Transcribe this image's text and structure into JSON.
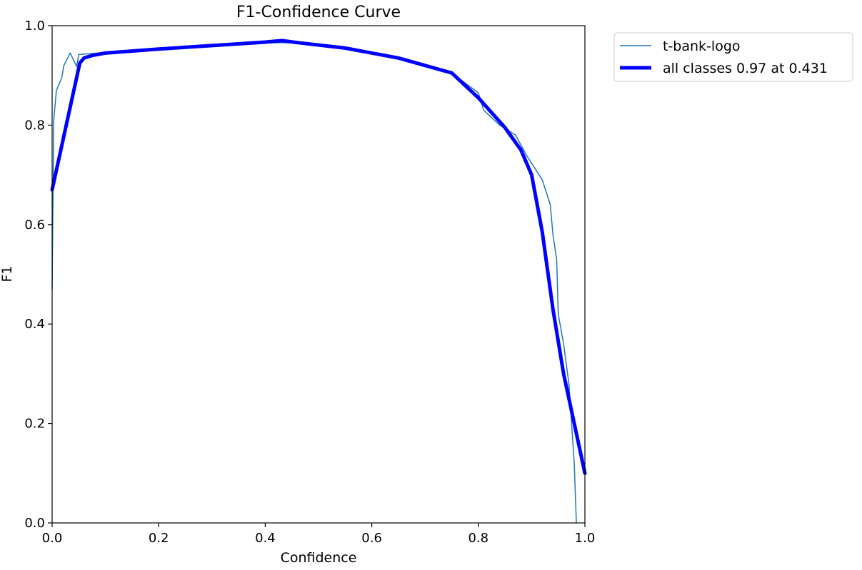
{
  "chart_data": {
    "type": "line",
    "title": "F1-Confidence Curve",
    "xlabel": "Confidence",
    "ylabel": "F1",
    "xlim": [
      0.0,
      1.0
    ],
    "ylim": [
      0.0,
      1.0
    ],
    "xticks": [
      "0.0",
      "0.2",
      "0.4",
      "0.6",
      "0.8",
      "1.0"
    ],
    "yticks": [
      "0.0",
      "0.2",
      "0.4",
      "0.6",
      "0.8",
      "1.0"
    ],
    "grid": false,
    "legend_position": "outside-top-right",
    "series": [
      {
        "name": "t-bank-logo",
        "color": "#1f77b4",
        "style": "thin",
        "x": [
          0.0,
          0.003,
          0.008,
          0.018,
          0.022,
          0.034,
          0.046,
          0.05,
          0.1,
          0.2,
          0.3,
          0.4,
          0.43,
          0.46,
          0.55,
          0.65,
          0.75,
          0.8,
          0.81,
          0.82,
          0.83,
          0.84,
          0.87,
          0.89,
          0.92,
          0.935,
          0.94,
          0.947,
          0.95,
          0.96,
          0.97,
          0.975,
          0.98,
          0.982,
          0.984
        ],
        "values": [
          0.47,
          0.81,
          0.87,
          0.895,
          0.92,
          0.945,
          0.918,
          0.942,
          0.946,
          0.952,
          0.958,
          0.965,
          0.966,
          0.965,
          0.955,
          0.935,
          0.905,
          0.865,
          0.83,
          0.82,
          0.81,
          0.8,
          0.78,
          0.74,
          0.69,
          0.64,
          0.58,
          0.53,
          0.42,
          0.36,
          0.28,
          0.2,
          0.12,
          0.06,
          0.0
        ]
      },
      {
        "name": "all classes 0.97 at 0.431",
        "color": "#0000ff",
        "style": "thick",
        "x": [
          0.0,
          0.052,
          0.06,
          0.075,
          0.1,
          0.2,
          0.3,
          0.4,
          0.431,
          0.46,
          0.55,
          0.65,
          0.75,
          0.8,
          0.85,
          0.88,
          0.9,
          0.92,
          0.94,
          0.96,
          0.98,
          1.0
        ],
        "values": [
          0.67,
          0.925,
          0.935,
          0.94,
          0.945,
          0.953,
          0.96,
          0.967,
          0.97,
          0.966,
          0.955,
          0.935,
          0.905,
          0.855,
          0.795,
          0.75,
          0.7,
          0.585,
          0.43,
          0.3,
          0.2,
          0.1
        ]
      }
    ]
  }
}
